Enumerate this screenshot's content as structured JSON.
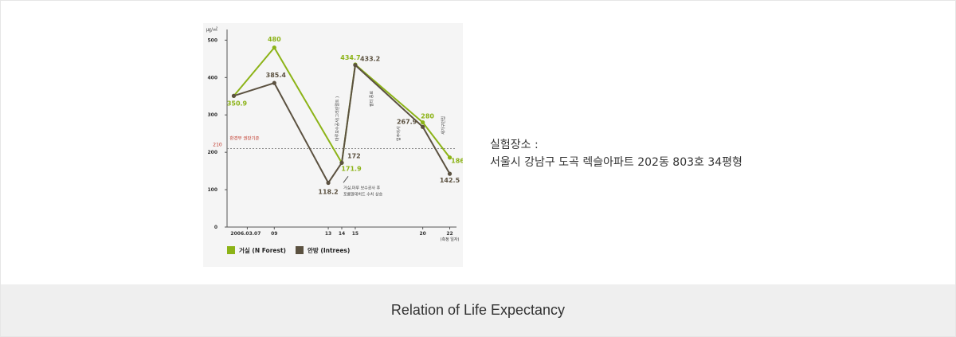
{
  "chart_data": {
    "type": "line",
    "unit_label": "㎍/㎥",
    "y_ticks": [
      0,
      100,
      200,
      300,
      400,
      500
    ],
    "ylim": [
      0,
      520
    ],
    "x_ticks": [
      {
        "x": 7,
        "label": "2006.03.07"
      },
      {
        "x": 9,
        "label": "09"
      },
      {
        "x": 13,
        "label": "13"
      },
      {
        "x": 14,
        "label": "14"
      },
      {
        "x": 15,
        "label": "15"
      },
      {
        "x": 20,
        "label": "20"
      },
      {
        "x": 22,
        "label": "22"
      }
    ],
    "x_axis_note": "(측정 일자)",
    "reference": {
      "value": 210,
      "label": "210",
      "text": "환경부 권장기준"
    },
    "series": [
      {
        "name": "거실 (N Forest)",
        "color": "#8cb317",
        "points": [
          {
            "x": 6,
            "y": 350.9,
            "label": "350.9"
          },
          {
            "x": 9,
            "y": 480,
            "label": "480"
          },
          {
            "x": 14,
            "y": 171.9,
            "label": "171.9"
          },
          {
            "x": 15,
            "y": 434.7,
            "label": "434.7"
          },
          {
            "x": 20,
            "y": 280,
            "label": "280"
          },
          {
            "x": 22,
            "y": 186,
            "label": "186"
          }
        ]
      },
      {
        "name": "안방 (Intrees)",
        "color": "#5b5140",
        "points": [
          {
            "x": 6,
            "y": 350.9,
            "label": ""
          },
          {
            "x": 9,
            "y": 385.4,
            "label": "385.4"
          },
          {
            "x": 13,
            "y": 118.2,
            "label": "118.2"
          },
          {
            "x": 14,
            "y": 172,
            "label": "172"
          },
          {
            "x": 15,
            "y": 433.2,
            "label": "433.2"
          },
          {
            "x": 20,
            "y": 267.9,
            "label": "267.9"
          },
          {
            "x": 22,
            "y": 142.5,
            "label": "142.5"
          }
        ]
      }
    ],
    "annotations": {
      "event_a": "마루보수공사(그리린멀트 )",
      "event_b": "필터 종료",
      "event_c": "입주이사",
      "event_d": "새가구반입",
      "note_line1": "거실,마루 보수공사 후",
      "note_line2": "포름알데히드 수치 상승"
    }
  },
  "side": {
    "line1": "실험장소 :",
    "line2": "서울시 강남구 도곡 렉슬아파트 202동 803호 34평형"
  },
  "footer": {
    "title": "Relation of Life Expectancy"
  }
}
